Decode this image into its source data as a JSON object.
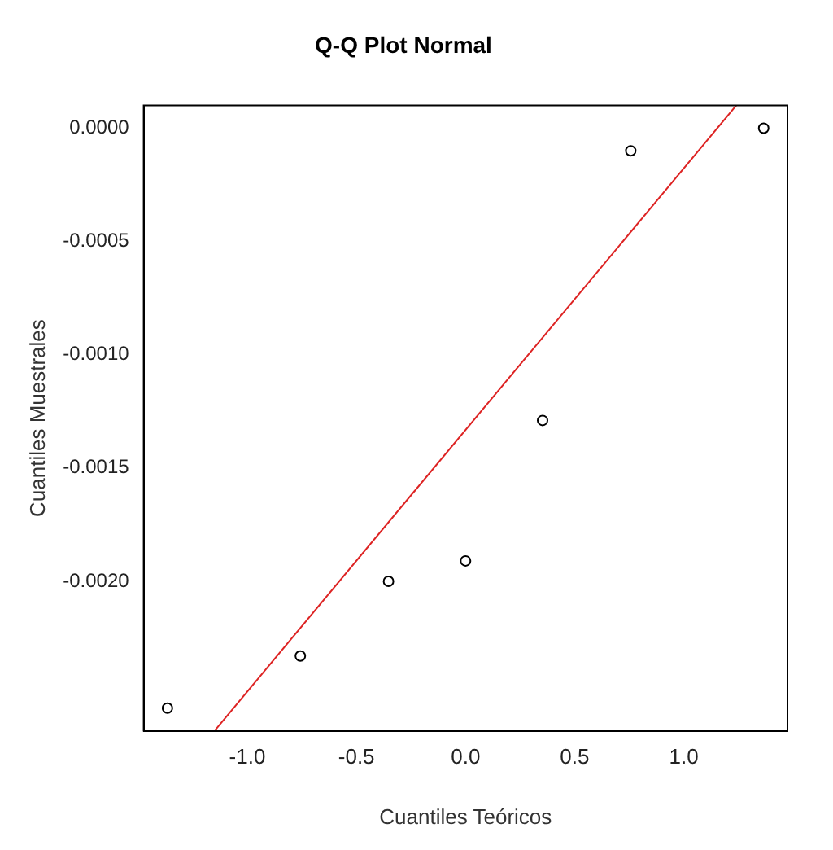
{
  "chart_data": {
    "type": "scatter",
    "title": "Q-Q Plot Normal",
    "xlabel": "Cuantiles Teóricos",
    "ylabel": "Cuantiles Muestrales",
    "series": [
      {
        "color": "#000000",
        "marker": "circle",
        "x": [
          -1.366,
          -0.757,
          -0.353,
          0,
          0.353,
          0.757,
          1.366
        ],
        "values": [
          -0.00256,
          -0.00233,
          -0.002,
          -0.00191,
          -0.00129,
          -0.0001,
          0
        ]
      },
      {
        "type": "line",
        "color": "#dd2222",
        "marker": "none",
        "x": [
          -1.15,
          1.24
        ],
        "values": [
          -0.00266,
          0.0001
        ]
      }
    ],
    "xlim": [
      -1.475,
      1.475
    ],
    "xticks": [
      {
        "value": -1,
        "label": "-1.0"
      },
      {
        "value": -0.5,
        "label": "-0.5"
      },
      {
        "value": 0,
        "label": "0.0"
      },
      {
        "value": 0.5,
        "label": "0.5"
      },
      {
        "value": 1,
        "label": "1.0"
      }
    ],
    "ylim": [
      -0.00266,
      0.0001
    ],
    "yticks": [
      {
        "value": -0.002,
        "label": "-0.0020"
      },
      {
        "value": -0.0015,
        "label": "-0.0015"
      },
      {
        "value": -0.001,
        "label": "-0.0010"
      },
      {
        "value": -0.0005,
        "label": "-0.0005"
      },
      {
        "value": 0,
        "label": "0.0000"
      }
    ],
    "grid": false,
    "legend": false
  }
}
